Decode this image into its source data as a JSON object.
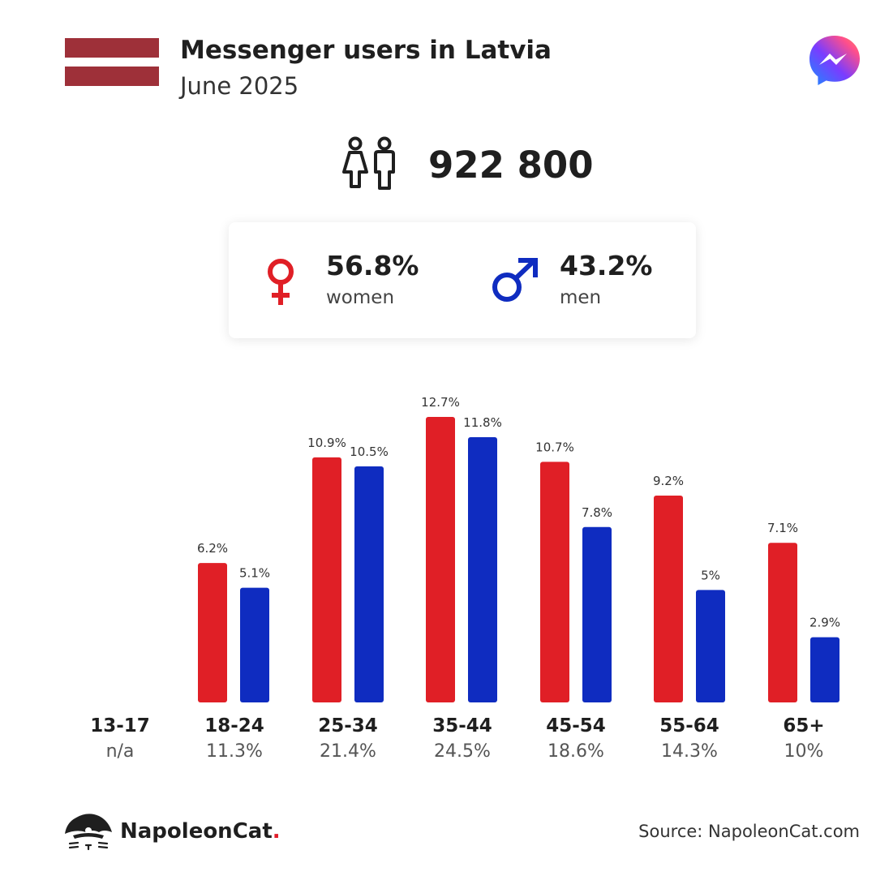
{
  "header": {
    "title": "Messenger users in Latvia",
    "subtitle": "June 2025"
  },
  "flag": {
    "top_color": "#9e3039",
    "middle_color": "#ffffff",
    "bottom_color": "#9e3039"
  },
  "total": {
    "icon": "people-icon",
    "value": "922 800"
  },
  "gender": {
    "women": {
      "icon": "female-symbol-icon",
      "percent": "56.8%",
      "label": "women",
      "color": "#e01f26"
    },
    "men": {
      "icon": "male-symbol-icon",
      "percent": "43.2%",
      "label": "men",
      "color": "#0f2cc0"
    }
  },
  "chart_data": {
    "type": "bar",
    "categories": [
      "13-17",
      "18-24",
      "25-34",
      "35-44",
      "45-54",
      "55-64",
      "65+"
    ],
    "category_shares": [
      "n/a",
      "11.3%",
      "21.4%",
      "24.5%",
      "18.6%",
      "14.3%",
      "10%"
    ],
    "series": [
      {
        "key": "women",
        "color": "#e01f26",
        "values": [
          null,
          6.2,
          10.9,
          12.7,
          10.7,
          9.2,
          7.1
        ],
        "labels": [
          "",
          "6.2%",
          "10.9%",
          "12.7%",
          "10.7%",
          "9.2%",
          "7.1%"
        ]
      },
      {
        "key": "men",
        "color": "#0f2cc0",
        "values": [
          null,
          5.1,
          10.5,
          11.8,
          7.8,
          5.0,
          2.9
        ],
        "labels": [
          "",
          "5.1%",
          "10.5%",
          "11.8%",
          "7.8%",
          "5%",
          "2.9%"
        ]
      }
    ],
    "ylim": [
      0,
      12.7
    ],
    "grid": false
  },
  "footer": {
    "brand_name": "NapoleonCat",
    "brand_dot": ".",
    "source": "Source: NapoleonCat.com"
  }
}
